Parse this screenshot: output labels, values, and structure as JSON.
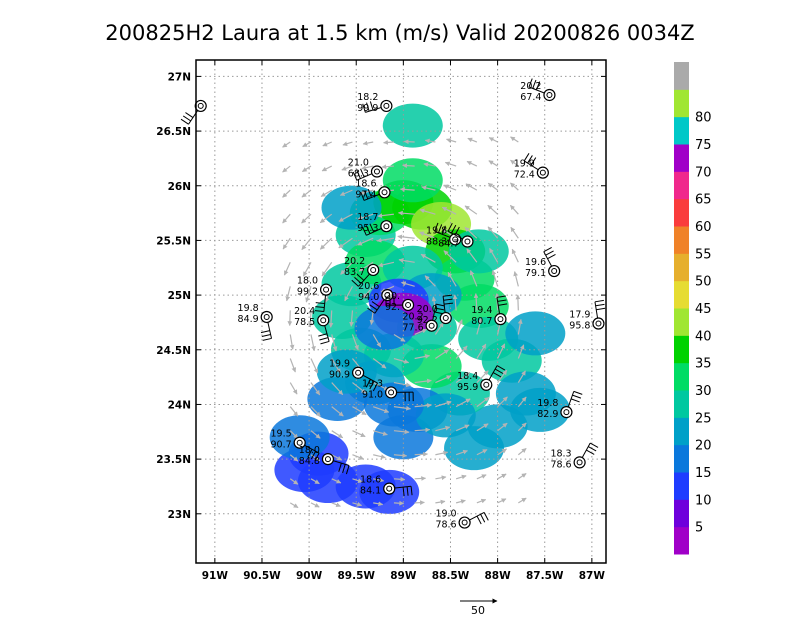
{
  "title": "200825H2 Laura at 1.5 km (m/s) Valid 20200826 0034Z",
  "vector_scale_label": "50",
  "chart_data": {
    "type": "heatmap",
    "title": "200825H2 Laura at 1.5 km (m/s) Valid 20200826 0034Z",
    "xlabel": "",
    "ylabel": "",
    "xlim": [
      -91.2,
      -86.85
    ],
    "ylim": [
      22.55,
      27.15
    ],
    "x_ticks": [
      {
        "value": -91.0,
        "label": "91W"
      },
      {
        "value": -90.5,
        "label": "90.5W"
      },
      {
        "value": -90.0,
        "label": "90W"
      },
      {
        "value": -89.5,
        "label": "89.5W"
      },
      {
        "value": -89.0,
        "label": "89W"
      },
      {
        "value": -88.5,
        "label": "88.5W"
      },
      {
        "value": -88.0,
        "label": "88W"
      },
      {
        "value": -87.5,
        "label": "87.5W"
      },
      {
        "value": -87.0,
        "label": "87W"
      }
    ],
    "y_ticks": [
      {
        "value": 23.0,
        "label": "23N"
      },
      {
        "value": 23.5,
        "label": "23.5N"
      },
      {
        "value": 24.0,
        "label": "24N"
      },
      {
        "value": 24.5,
        "label": "24.5N"
      },
      {
        "value": 25.0,
        "label": "25N"
      },
      {
        "value": 25.5,
        "label": "25.5N"
      },
      {
        "value": 26.0,
        "label": "26N"
      },
      {
        "value": 26.5,
        "label": "26.5N"
      },
      {
        "value": 27.0,
        "label": "27N"
      }
    ],
    "grid": true,
    "colorbar": {
      "levels": [
        0,
        5,
        10,
        15,
        20,
        25,
        30,
        35,
        40,
        45,
        50,
        55,
        60,
        65,
        70,
        75,
        80,
        85
      ],
      "labels": [
        "5",
        "10",
        "15",
        "20",
        "25",
        "30",
        "35",
        "40",
        "45",
        "50",
        "55",
        "60",
        "65",
        "70",
        "75",
        "80"
      ],
      "colors": [
        "#a000c8",
        "#6e00dc",
        "#1e3cff",
        "#0a78dc",
        "#00a0c8",
        "#00c8a0",
        "#00dc64",
        "#00d200",
        "#a0e632",
        "#e6dc32",
        "#e6af2d",
        "#f08228",
        "#fa3c3c",
        "#f0288c",
        "#a000c8",
        "#00c8c8",
        "#a0e632",
        "#aaaaaa"
      ]
    },
    "storm_center": {
      "lon": -88.97,
      "lat": 24.82
    },
    "wind_field_cells": [
      {
        "lon": -89.4,
        "lat": 25.55,
        "value": 28
      },
      {
        "lon": -89.25,
        "lat": 25.75,
        "value": 30
      },
      {
        "lon": -89.0,
        "lat": 25.85,
        "value": 35
      },
      {
        "lon": -88.8,
        "lat": 25.8,
        "value": 38
      },
      {
        "lon": -88.6,
        "lat": 25.65,
        "value": 40
      },
      {
        "lon": -88.45,
        "lat": 25.4,
        "value": 35
      },
      {
        "lon": -88.35,
        "lat": 25.15,
        "value": 30
      },
      {
        "lon": -88.2,
        "lat": 24.9,
        "value": 30
      },
      {
        "lon": -88.1,
        "lat": 24.6,
        "value": 28
      },
      {
        "lon": -87.85,
        "lat": 24.4,
        "value": 25
      },
      {
        "lon": -87.7,
        "lat": 24.1,
        "value": 22
      },
      {
        "lon": -88.0,
        "lat": 23.8,
        "value": 20
      },
      {
        "lon": -88.4,
        "lat": 24.1,
        "value": 25
      },
      {
        "lon": -88.7,
        "lat": 24.35,
        "value": 30
      },
      {
        "lon": -89.1,
        "lat": 24.45,
        "value": 28
      },
      {
        "lon": -89.45,
        "lat": 24.5,
        "value": 25
      },
      {
        "lon": -89.65,
        "lat": 24.8,
        "value": 25
      },
      {
        "lon": -89.55,
        "lat": 25.1,
        "value": 28
      },
      {
        "lon": -89.3,
        "lat": 25.3,
        "value": 30
      },
      {
        "lon": -88.9,
        "lat": 25.25,
        "value": 25
      },
      {
        "lon": -88.7,
        "lat": 25.0,
        "value": 22
      },
      {
        "lon": -88.75,
        "lat": 24.7,
        "value": 25
      },
      {
        "lon": -89.05,
        "lat": 24.95,
        "value": 10
      },
      {
        "lon": -89.0,
        "lat": 24.82,
        "value": 4
      },
      {
        "lon": -89.2,
        "lat": 24.7,
        "value": 15
      },
      {
        "lon": -89.3,
        "lat": 24.2,
        "value": 20
      },
      {
        "lon": -89.7,
        "lat": 24.05,
        "value": 18
      },
      {
        "lon": -88.85,
        "lat": 23.95,
        "value": 18
      },
      {
        "lon": -89.0,
        "lat": 23.7,
        "value": 15
      },
      {
        "lon": -89.6,
        "lat": 24.3,
        "value": 22
      },
      {
        "lon": -89.9,
        "lat": 23.55,
        "value": 10
      },
      {
        "lon": -90.05,
        "lat": 23.4,
        "value": 12
      },
      {
        "lon": -89.8,
        "lat": 23.3,
        "value": 12
      },
      {
        "lon": -89.4,
        "lat": 23.25,
        "value": 10
      },
      {
        "lon": -89.15,
        "lat": 23.2,
        "value": 12
      },
      {
        "lon": -90.1,
        "lat": 23.7,
        "value": 15
      },
      {
        "lon": -88.9,
        "lat": 26.05,
        "value": 30
      },
      {
        "lon": -88.9,
        "lat": 26.55,
        "value": 28
      },
      {
        "lon": -89.55,
        "lat": 25.8,
        "value": 22
      },
      {
        "lon": -87.6,
        "lat": 24.65,
        "value": 22
      },
      {
        "lon": -87.55,
        "lat": 23.95,
        "value": 20
      },
      {
        "lon": -88.25,
        "lat": 23.6,
        "value": 22
      },
      {
        "lon": -88.55,
        "lat": 23.9,
        "value": 20
      },
      {
        "lon": -89.1,
        "lat": 24.0,
        "value": 18
      },
      {
        "lon": -88.2,
        "lat": 25.4,
        "value": 28
      }
    ],
    "observations": [
      {
        "lon": -91.15,
        "lat": 26.73,
        "line1": "",
        "line2": ""
      },
      {
        "lon": -89.18,
        "lat": 26.73,
        "line1": "18.2",
        "line2": "99.9"
      },
      {
        "lon": -87.45,
        "lat": 26.83,
        "line1": "20.2",
        "line2": "67.4"
      },
      {
        "lon": -89.28,
        "lat": 26.13,
        "line1": "21.0",
        "line2": "68.3"
      },
      {
        "lon": -87.52,
        "lat": 26.12,
        "line1": "19.9",
        "line2": "72.4"
      },
      {
        "lon": -89.2,
        "lat": 25.94,
        "line1": "18.6",
        "line2": "97.4"
      },
      {
        "lon": -89.18,
        "lat": 25.63,
        "line1": "18.7",
        "line2": "95.3"
      },
      {
        "lon": -88.45,
        "lat": 25.51,
        "line1": "19.8",
        "line2": "88.3"
      },
      {
        "lon": -88.32,
        "lat": 25.49,
        "line1": "",
        "line2": "84.7"
      },
      {
        "lon": -89.32,
        "lat": 25.23,
        "line1": "20.2",
        "line2": "83.7"
      },
      {
        "lon": -87.4,
        "lat": 25.22,
        "line1": "19.6",
        "line2": "79.1"
      },
      {
        "lon": -89.82,
        "lat": 25.05,
        "line1": "18.0",
        "line2": "99.2"
      },
      {
        "lon": -89.17,
        "lat": 25.0,
        "line1": "20.6",
        "line2": "94.0"
      },
      {
        "lon": -88.95,
        "lat": 24.91,
        "line1": "20.",
        "line2": "92."
      },
      {
        "lon": -90.45,
        "lat": 24.8,
        "line1": "19.8",
        "line2": "84.9"
      },
      {
        "lon": -89.85,
        "lat": 24.77,
        "line1": "20.4",
        "line2": "78.5"
      },
      {
        "lon": -88.55,
        "lat": 24.79,
        "line1": "20.0",
        "line2": "92.2"
      },
      {
        "lon": -88.7,
        "lat": 24.72,
        "line1": "20.2",
        "line2": "77.6"
      },
      {
        "lon": -87.97,
        "lat": 24.78,
        "line1": "19.4",
        "line2": "80.7"
      },
      {
        "lon": -86.93,
        "lat": 24.74,
        "line1": "17.9",
        "line2": "95.8"
      },
      {
        "lon": -89.48,
        "lat": 24.29,
        "line1": "19.9",
        "line2": "90.9"
      },
      {
        "lon": -89.13,
        "lat": 24.11,
        "line1": "19.3",
        "line2": "91.0"
      },
      {
        "lon": -88.12,
        "lat": 24.18,
        "line1": "18.4",
        "line2": "95.9"
      },
      {
        "lon": -87.27,
        "lat": 23.93,
        "line1": "19.8",
        "line2": "82.9"
      },
      {
        "lon": -90.1,
        "lat": 23.65,
        "line1": "19.5",
        "line2": "90.7"
      },
      {
        "lon": -89.8,
        "lat": 23.5,
        "line1": "18.0",
        "line2": "84.8"
      },
      {
        "lon": -87.13,
        "lat": 23.47,
        "line1": "18.3",
        "line2": "78.6"
      },
      {
        "lon": -89.15,
        "lat": 23.23,
        "line1": "18.6",
        "line2": "84.1"
      },
      {
        "lon": -88.35,
        "lat": 22.92,
        "line1": "19.0",
        "line2": "78.6"
      }
    ]
  }
}
